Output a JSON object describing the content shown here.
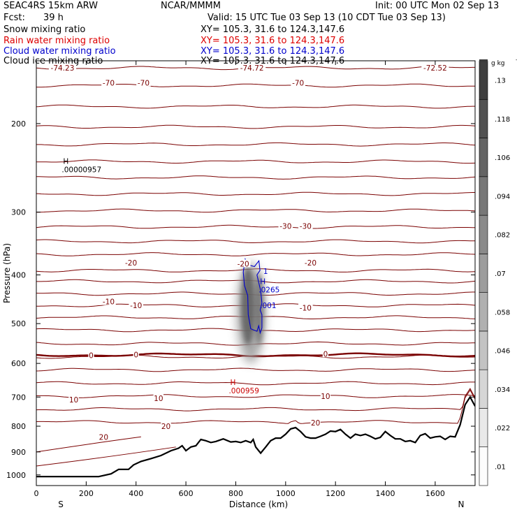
{
  "header": {
    "model": "SEAC4RS 15km ARW",
    "org": "NCAR/MMMM",
    "init": "Init: 00 UTC Mon 02 Sep 13",
    "fcst_label": "Fcst:",
    "fcst_value": "39 h",
    "valid": "Valid: 15 UTC Tue 03 Sep 13 (10 CDT Tue 03 Sep 13)"
  },
  "fields": [
    {
      "name": "Snow mixing ratio",
      "xy": "XY= 105.3, 31.6 to 124.3,147.6",
      "color": "#000000"
    },
    {
      "name": "Rain water mixing ratio",
      "xy": "XY= 105.3, 31.6 to 124.3,147.6",
      "color": "#dd0000"
    },
    {
      "name": "Cloud water mixing ratio",
      "xy": "XY= 105.3, 31.6 to 124.3,147.6",
      "color": "#0000cc"
    },
    {
      "name": "Cloud ice mixing ratio",
      "xy": "XY= 105.3, 31.6 to 124.3,147.6",
      "color": "#000000"
    }
  ],
  "colors": {
    "temperature_contour": "#7a0000",
    "zero_contour": "#7a0000",
    "cloud_water": "#0000cc",
    "rain_water": "#cc0000",
    "terrain": "#000000"
  },
  "chart_data": {
    "type": "cross-section",
    "xlabel": "Distance (km)",
    "ylabel": "Pressure (hPa)",
    "xlim": [
      0,
      1760
    ],
    "ylim": [
      150,
      1050
    ],
    "x_ticks": [
      "0",
      "200",
      "400",
      "600",
      "800",
      "1000",
      "1200",
      "1400",
      "1600"
    ],
    "y_ticks": [
      "200",
      "300",
      "400",
      "500",
      "600",
      "700",
      "800",
      "900",
      "1000"
    ],
    "y_tick_values": [
      200,
      300,
      400,
      500,
      600,
      700,
      800,
      900,
      1000
    ],
    "y_scale": "log",
    "endpoint_left": "S",
    "endpoint_right": "N",
    "colorbar": {
      "unit": "g kg",
      "unit_exponent": "-1",
      "tick_labels": [
        ".01",
        ".022",
        ".034",
        ".046",
        ".058",
        ".07",
        ".082",
        ".094",
        ".106",
        ".118",
        ".13"
      ],
      "levels": [
        0.01,
        0.022,
        0.034,
        0.046,
        0.058,
        0.07,
        0.082,
        0.094,
        0.106,
        0.118,
        0.13
      ]
    },
    "isotherm_pressures_hpa": [
      155,
      168,
      185,
      203,
      220,
      238,
      256,
      276,
      298,
      321,
      343,
      364,
      392,
      412,
      436,
      460,
      486,
      515,
      548,
      582,
      618,
      657,
      697,
      740,
      785
    ],
    "zero_isotherm_pressure_hpa": 577,
    "contour_labels": [
      {
        "text": "-74.23",
        "x": 105,
        "p": 155
      },
      {
        "text": "-70",
        "x": 290,
        "p": 166
      },
      {
        "text": "-70",
        "x": 430,
        "p": 166
      },
      {
        "text": "-74.72",
        "x": 865,
        "p": 155
      },
      {
        "text": "-70",
        "x": 1050,
        "p": 166
      },
      {
        "text": "-72.52",
        "x": 1600,
        "p": 155
      },
      {
        "text": "-30",
        "x": 1000,
        "p": 320
      },
      {
        "text": "-30",
        "x": 1080,
        "p": 320
      },
      {
        "text": "-20",
        "x": 380,
        "p": 378
      },
      {
        "text": "-20",
        "x": 830,
        "p": 380
      },
      {
        "text": "-20",
        "x": 1100,
        "p": 378
      },
      {
        "text": "-10",
        "x": 290,
        "p": 452
      },
      {
        "text": "-10",
        "x": 400,
        "p": 460
      },
      {
        "text": "-10",
        "x": 1080,
        "p": 465
      },
      {
        "text": "0",
        "x": 220,
        "p": 578
      },
      {
        "text": "0",
        "x": 400,
        "p": 576
      },
      {
        "text": "0",
        "x": 1160,
        "p": 574
      },
      {
        "text": "10",
        "x": 150,
        "p": 708
      },
      {
        "text": "10",
        "x": 490,
        "p": 704
      },
      {
        "text": "10",
        "x": 1160,
        "p": 697
      },
      {
        "text": "20",
        "x": 270,
        "p": 840
      },
      {
        "text": "20",
        "x": 520,
        "p": 800
      },
      {
        "text": "20",
        "x": 1120,
        "p": 787
      }
    ],
    "maxima_labels": [
      {
        "field": "snow",
        "marker": "H",
        "value": ".00000957",
        "x": 130,
        "p": 245
      },
      {
        "field": "cloud_water",
        "marker": "H",
        "value": ".0265",
        "x": 920,
        "p": 425
      },
      {
        "field": "rain_water",
        "marker": "H",
        "value": ".000959",
        "x": 800,
        "p": 675
      }
    ],
    "cloud_water_contour_labels": [
      {
        "text": "1",
        "x": 920,
        "p": 393
      },
      {
        "text": ".001",
        "x": 930,
        "p": 460
      }
    ],
    "snow_core": {
      "x_center": 860,
      "p_top": 378,
      "p_bottom": 600,
      "max": 0.13
    },
    "terrain": {
      "x": [
        0,
        100,
        200,
        250,
        300,
        330,
        370,
        390,
        420,
        460,
        500,
        540,
        570,
        585,
        600,
        620,
        640,
        660,
        680,
        700,
        720,
        750,
        780,
        800,
        820,
        840,
        860,
        870,
        880,
        900,
        920,
        940,
        960,
        980,
        1000,
        1020,
        1040,
        1060,
        1080,
        1100,
        1120,
        1140,
        1160,
        1180,
        1200,
        1220,
        1240,
        1260,
        1280,
        1300,
        1320,
        1340,
        1360,
        1380,
        1400,
        1420,
        1440,
        1460,
        1480,
        1500,
        1520,
        1540,
        1560,
        1580,
        1600,
        1620,
        1640,
        1660,
        1680,
        1700,
        1720,
        1740,
        1760
      ],
      "p": [
        1008,
        1008,
        1008,
        1008,
        995,
        975,
        975,
        955,
        940,
        928,
        915,
        895,
        885,
        875,
        895,
        880,
        875,
        850,
        855,
        862,
        858,
        848,
        860,
        858,
        862,
        855,
        862,
        850,
        880,
        905,
        880,
        855,
        845,
        845,
        830,
        810,
        805,
        820,
        840,
        845,
        845,
        838,
        830,
        818,
        820,
        812,
        830,
        845,
        830,
        835,
        830,
        838,
        848,
        842,
        820,
        835,
        848,
        848,
        858,
        855,
        862,
        835,
        828,
        845,
        840,
        838,
        850,
        838,
        840,
        795,
        725,
        700,
        730
      ]
    }
  }
}
